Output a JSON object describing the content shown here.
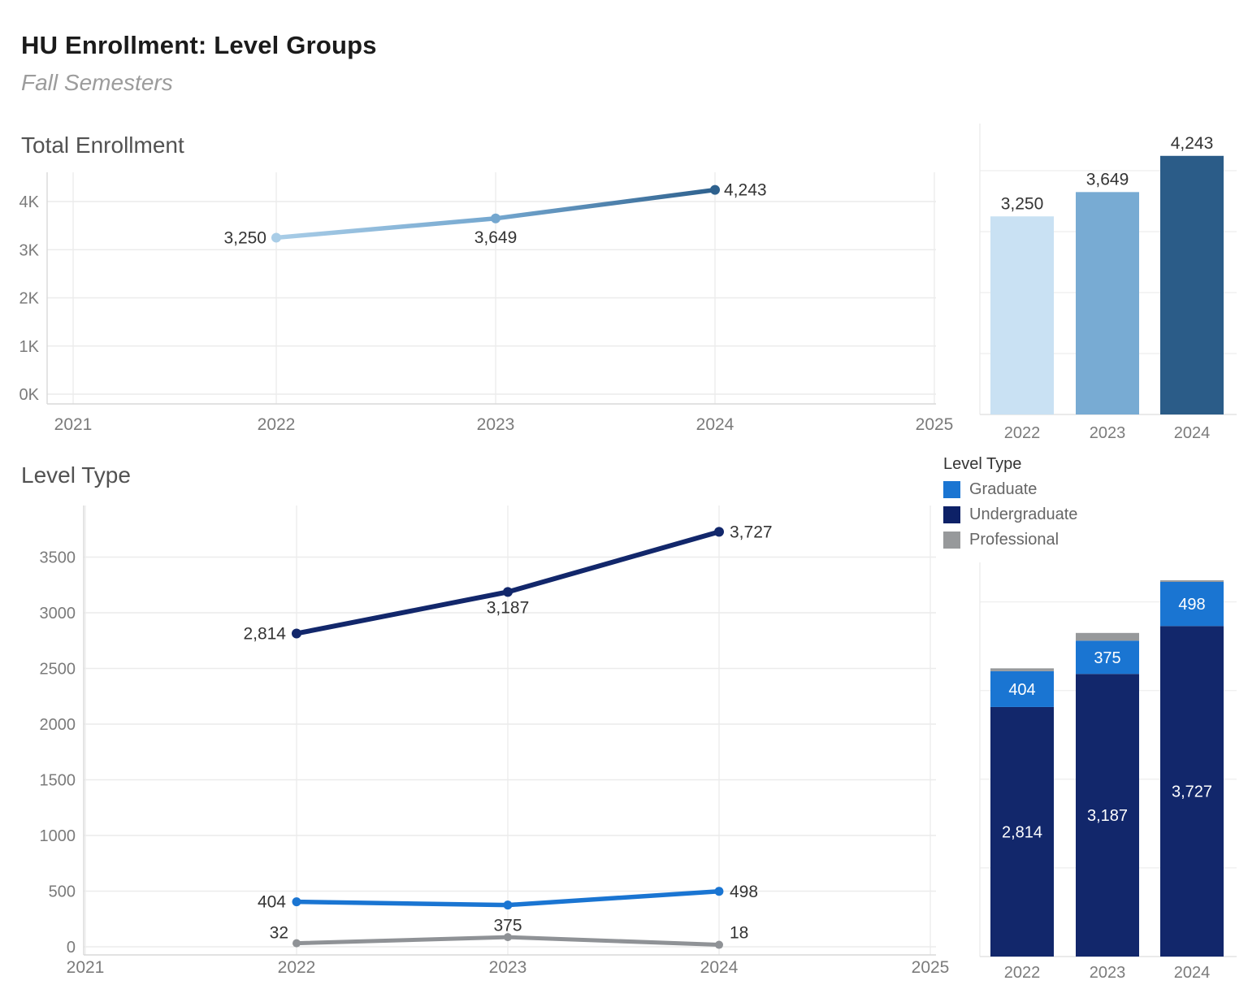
{
  "header": {
    "title": "HU Enrollment: Level Groups",
    "subtitle": "Fall Semesters"
  },
  "legend": {
    "title": "Level Type",
    "items": [
      {
        "label": "Graduate",
        "color": "#1a75d2"
      },
      {
        "label": "Undergraduate",
        "color": "#0d2167"
      },
      {
        "label": "Professional",
        "color": "#97999b"
      }
    ]
  },
  "palette": {
    "gridline": "#ececec",
    "grid_light": "#f0f0f0",
    "axis_line": "#d9d9d9",
    "baseline": "#e4e4e4",
    "tick_label": "#7b7b7b",
    "data_label": "#343434",
    "bar_label_light": "#ffffff",
    "background": "#ffffff"
  },
  "chart_data": [
    {
      "id": "total-enrollment-line",
      "type": "line",
      "title": "Total Enrollment",
      "x": [
        "2022",
        "2023",
        "2024"
      ],
      "x_axis_ticks": [
        "2021",
        "2022",
        "2023",
        "2024",
        "2025"
      ],
      "y_axis_ticks": [
        "0K",
        "1K",
        "2K",
        "3K",
        "4K"
      ],
      "y_tick_values": [
        0,
        1000,
        2000,
        3000,
        4000
      ],
      "ylim": [
        0,
        4000
      ],
      "grid": true,
      "legend_position": "none",
      "series": [
        {
          "name": "Total Enrollment",
          "values": [
            3250,
            3649,
            4243
          ],
          "labels": [
            "3,250",
            "3,649",
            "4,243"
          ],
          "colors": [
            "#a9cde7",
            "#74a7cf",
            "#2e618e"
          ]
        }
      ]
    },
    {
      "id": "total-enrollment-bars",
      "type": "bar",
      "categories": [
        "2022",
        "2023",
        "2024"
      ],
      "values": [
        3250,
        3649,
        4243
      ],
      "labels": [
        "3,250",
        "3,649",
        "4,243"
      ],
      "colors": [
        "#c9e1f3",
        "#78abd3",
        "#2b5c88"
      ],
      "ylim": [
        0,
        4243
      ],
      "grid": true
    },
    {
      "id": "level-type-line",
      "type": "line",
      "title": "Level Type",
      "x": [
        "2022",
        "2023",
        "2024"
      ],
      "x_axis_ticks": [
        "2021",
        "2022",
        "2023",
        "2024",
        "2025"
      ],
      "y_axis_ticks": [
        "0",
        "500",
        "1000",
        "1500",
        "2000",
        "2500",
        "3000",
        "3500"
      ],
      "y_tick_values": [
        0,
        500,
        1000,
        1500,
        2000,
        2500,
        3000,
        3500
      ],
      "ylim": [
        0,
        3500
      ],
      "grid": true,
      "series": [
        {
          "name": "Undergraduate",
          "color": "#12276b",
          "values": [
            2814,
            3187,
            3727
          ],
          "labels": [
            "2,814",
            "3,187",
            "3,727"
          ]
        },
        {
          "name": "Graduate",
          "color": "#1a75d2",
          "values": [
            404,
            375,
            498
          ],
          "labels": [
            "404",
            "375",
            "498"
          ]
        },
        {
          "name": "Professional",
          "color": "#8f9296",
          "values": [
            32,
            87,
            18
          ],
          "labels": [
            "32",
            "",
            "18"
          ]
        }
      ]
    },
    {
      "id": "level-type-stacked",
      "type": "bar",
      "stacked": true,
      "categories": [
        "2022",
        "2023",
        "2024"
      ],
      "ylim": [
        0,
        4243
      ],
      "grid": true,
      "series": [
        {
          "name": "Undergraduate",
          "color": "#12276b",
          "values": [
            2814,
            3187,
            3727
          ],
          "labels": [
            "2,814",
            "3,187",
            "3,727"
          ]
        },
        {
          "name": "Graduate",
          "color": "#1a75d2",
          "values": [
            404,
            375,
            498
          ],
          "labels": [
            "404",
            "375",
            "498"
          ]
        },
        {
          "name": "Professional",
          "color": "#97999b",
          "values": [
            32,
            87,
            18
          ],
          "labels": [
            "",
            "",
            ""
          ]
        }
      ]
    }
  ]
}
